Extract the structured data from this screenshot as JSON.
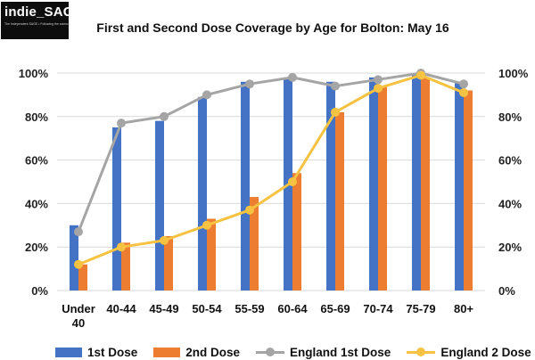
{
  "logo": {
    "name": "indie_SAGE",
    "tagline": "The Independent SAGE • Following the science"
  },
  "chart_data": {
    "type": "bar",
    "title": "First and Second Dose Coverage by Age for Bolton: May 16",
    "categories": [
      "Under 40",
      "40-44",
      "45-49",
      "50-54",
      "55-59",
      "60-64",
      "65-69",
      "70-74",
      "75-79",
      "80+"
    ],
    "category_lines": [
      [
        "Under",
        "40"
      ],
      [
        "40-44"
      ],
      [
        "45-49"
      ],
      [
        "50-54"
      ],
      [
        "55-59"
      ],
      [
        "60-64"
      ],
      [
        "65-69"
      ],
      [
        "70-74"
      ],
      [
        "75-79"
      ],
      [
        "80+"
      ]
    ],
    "ylim": [
      0,
      100
    ],
    "yticks": [
      "0%",
      "20%",
      "40%",
      "60%",
      "80%",
      "100%"
    ],
    "y2ticks": [
      "0%",
      "20%",
      "40%",
      "60%",
      "80%",
      "100%"
    ],
    "grid": true,
    "legend_position": "bottom",
    "series": [
      {
        "name": "1st Dose",
        "type": "bar",
        "color": "#4472C4",
        "values": [
          30,
          75,
          78,
          89,
          96,
          98,
          96,
          98,
          100,
          96
        ]
      },
      {
        "name": "2nd Dose",
        "type": "bar",
        "color": "#ED7D31",
        "values": [
          12,
          22,
          25,
          33,
          43,
          54,
          82,
          94,
          98,
          92
        ]
      },
      {
        "name": "England 1st Dose",
        "type": "line",
        "color": "#A5A5A5",
        "values": [
          27,
          77,
          80,
          90,
          95,
          98,
          94,
          97,
          100,
          95
        ]
      },
      {
        "name": "England 2 Dose",
        "type": "line",
        "color": "#F5C242",
        "values": [
          12,
          20,
          23,
          30,
          37,
          50,
          82,
          93,
          99,
          91
        ]
      }
    ]
  }
}
